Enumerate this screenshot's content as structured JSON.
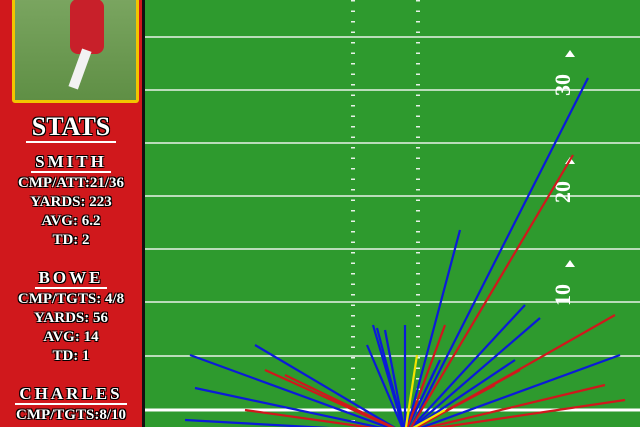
{
  "sidebar": {
    "title": "STATS",
    "players": [
      {
        "name": "SMITH",
        "stats": [
          "CMP/ATT:21/36",
          "YARDS: 223",
          "AVG: 6.2",
          "TD: 2"
        ]
      },
      {
        "name": "BOWE",
        "stats": [
          "CMP/TGTS: 4/8",
          "YARDS: 56",
          "AVG: 14",
          "TD: 1"
        ]
      },
      {
        "name": "CHARLES",
        "stats": [
          "CMP/TGTS:8/10"
        ]
      }
    ]
  },
  "field": {
    "yard_numbers": [
      "30",
      "20",
      "10"
    ]
  }
}
